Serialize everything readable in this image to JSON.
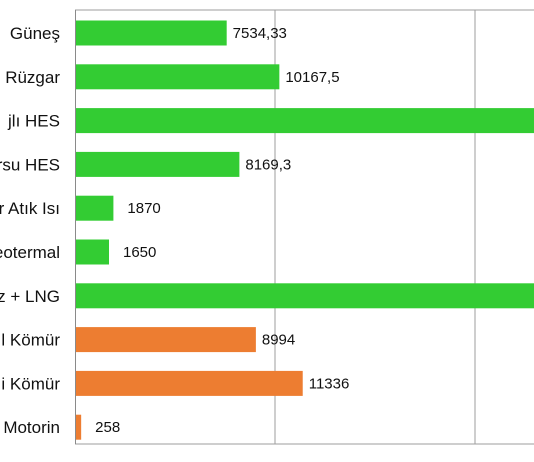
{
  "chart_data": {
    "type": "bar",
    "orientation": "horizontal",
    "categories": [
      "Güneş",
      "Rüzgar",
      "jlı HES",
      "rsu HES",
      "r Atık Isı",
      "eotermal",
      "z + LNG",
      "l Kömür",
      "i Kömür",
      "Motorin"
    ],
    "values": [
      7534.33,
      10167.5,
      null,
      8169.3,
      1870,
      1650,
      null,
      8994,
      11336,
      258
    ],
    "value_labels": [
      "7534,33",
      "10167,5",
      "",
      "8169,3",
      "1870",
      "1650",
      "",
      "8994",
      "11336",
      "258"
    ],
    "bar_colors": [
      "#33cc33",
      "#33cc33",
      "#33cc33",
      "#33cc33",
      "#33cc33",
      "#33cc33",
      "#33cc33",
      "#ed7d31",
      "#ed7d31",
      "#ed7d31"
    ],
    "xlim": [
      0,
      22000
    ],
    "gridlines_x": [
      0,
      10000,
      20000
    ],
    "grid": true,
    "legend": "none",
    "title": "",
    "xlabel": "",
    "ylabel": ""
  }
}
